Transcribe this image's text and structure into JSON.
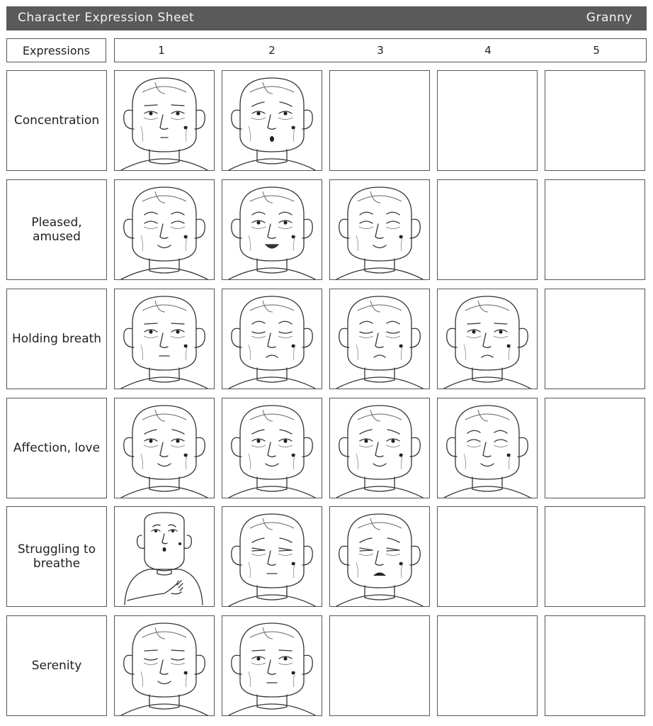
{
  "title": "Character Expression Sheet",
  "character": "Granny",
  "header": {
    "label": "Expressions",
    "columns": [
      "1",
      "2",
      "3",
      "4",
      "5"
    ]
  },
  "rows": [
    {
      "label": "Concentration",
      "drawings": [
        {
          "brow": "flat",
          "eyes": "open",
          "mouth": "small",
          "mole": true
        },
        {
          "brow": "worried",
          "eyes": "open",
          "mouth": "o",
          "mole": true
        }
      ]
    },
    {
      "label": "Pleased, amused",
      "drawings": [
        {
          "brow": "raised",
          "eyes": "closed-happy",
          "mouth": "smile",
          "mole": true
        },
        {
          "brow": "raised",
          "eyes": "open",
          "mouth": "smile-open",
          "mole": true
        },
        {
          "brow": "raised",
          "eyes": "closed-happy",
          "mouth": "smile",
          "mole": true
        }
      ]
    },
    {
      "label": "Holding breath",
      "drawings": [
        {
          "brow": "flat",
          "eyes": "open",
          "mouth": "flat",
          "mole": true
        },
        {
          "brow": "raised",
          "eyes": "closed",
          "mouth": "frown",
          "mole": true
        },
        {
          "brow": "raised",
          "eyes": "closed",
          "mouth": "frown",
          "mole": true
        },
        {
          "brow": "flat",
          "eyes": "open",
          "mouth": "frown",
          "mole": true
        }
      ]
    },
    {
      "label": "Affection, love",
      "drawings": [
        {
          "brow": "worried",
          "eyes": "open",
          "mouth": "smile",
          "mole": true
        },
        {
          "brow": "worried",
          "eyes": "open",
          "mouth": "smile",
          "mole": true
        },
        {
          "brow": "worried",
          "eyes": "open",
          "mouth": "smile",
          "mole": true
        },
        {
          "brow": "raised",
          "eyes": "closed-happy",
          "mouth": "smile",
          "mole": true
        }
      ]
    },
    {
      "label": "Struggling to breathe",
      "drawings": [
        {
          "pose": "fullbody",
          "brow": "worried",
          "eyes": "open",
          "mouth": "o",
          "mole": true
        },
        {
          "brow": "worried",
          "eyes": "squint",
          "mouth": "flat",
          "mole": true
        },
        {
          "brow": "worried",
          "eyes": "squint",
          "mouth": "open-wide",
          "mole": true
        }
      ]
    },
    {
      "label": "Serenity",
      "drawings": [
        {
          "brow": "flat",
          "eyes": "closed",
          "mouth": "smile",
          "mole": true
        },
        {
          "brow": "flat",
          "eyes": "open",
          "mouth": "flat",
          "mole": true
        }
      ]
    }
  ]
}
